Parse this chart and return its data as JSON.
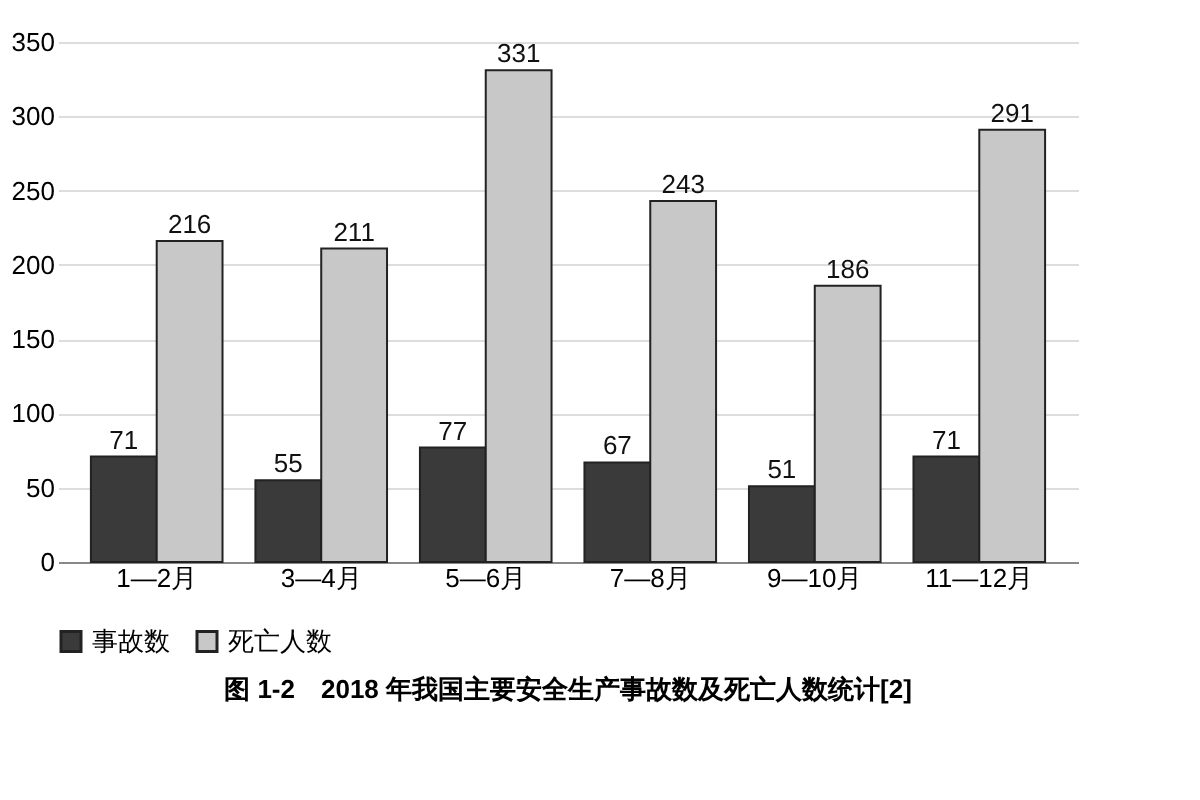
{
  "chart_data": {
    "type": "bar",
    "title": "图 1-2　2018 年我国主要安全生产事故数及死亡人数统计[2]",
    "categories": [
      "1—2月",
      "3—4月",
      "5—6月",
      "7—8月",
      "9—10月",
      "11—12月"
    ],
    "series": [
      {
        "name": "事故数",
        "color": "#3a3a3a",
        "values": [
          71,
          55,
          77,
          67,
          51,
          71
        ]
      },
      {
        "name": "死亡人数",
        "color": "#c8c8c8",
        "values": [
          216,
          211,
          331,
          243,
          186,
          291
        ]
      }
    ],
    "ylim": [
      0,
      350
    ],
    "yticks": [
      0,
      50,
      100,
      150,
      200,
      250,
      300,
      350
    ],
    "grid": "y",
    "legend": "bottom",
    "data_labels": true
  }
}
